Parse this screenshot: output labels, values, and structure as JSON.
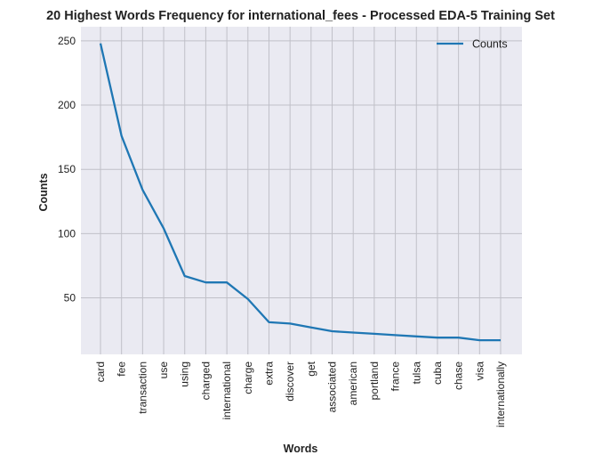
{
  "chart_data": {
    "type": "line",
    "title": "20 Highest Words Frequency for international_fees - Processed EDA-5 Training Set",
    "xlabel": "Words",
    "ylabel": "Counts",
    "categories": [
      "card",
      "fee",
      "transaction",
      "use",
      "using",
      "charged",
      "international",
      "charge",
      "extra",
      "discover",
      "get",
      "associated",
      "american",
      "portland",
      "france",
      "tulsa",
      "cuba",
      "chase",
      "visa",
      "internationally"
    ],
    "series": [
      {
        "name": "Counts",
        "values": [
          248,
          176,
          134,
          104,
          67,
          62,
          62,
          49,
          31,
          30,
          27,
          24,
          23,
          22,
          21,
          20,
          19,
          19,
          17,
          17
        ]
      }
    ],
    "ylim": [
      6,
      261
    ],
    "yticks": [
      50,
      100,
      150,
      200,
      250
    ],
    "grid": true,
    "legend": "top-right",
    "colors": {
      "line": "#1f77b4",
      "plot_bg": "#eaeaf2",
      "grid": "#c0c0c8"
    }
  }
}
